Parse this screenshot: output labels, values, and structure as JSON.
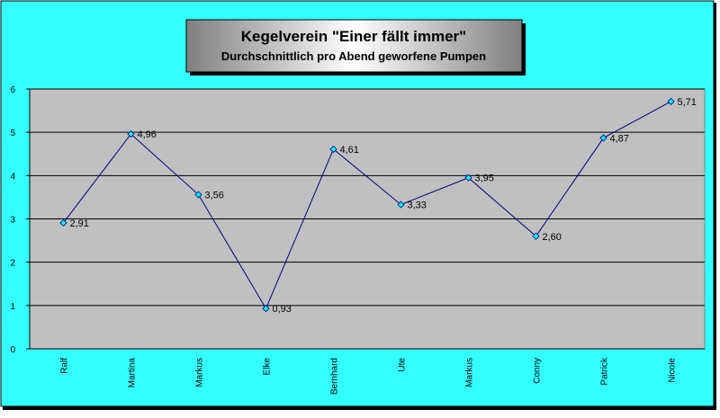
{
  "chart_data": {
    "type": "line",
    "title": "Kegelverein \"Einer fällt immer\"",
    "subtitle": "Durchschnittlich pro Abend geworfene Pumpen",
    "categories": [
      "Ralf",
      "Martina",
      "Markus",
      "Elke",
      "Bernhard",
      "Ute",
      "Markus",
      "Conny",
      "Patrick",
      "Nicole"
    ],
    "values": [
      2.91,
      4.96,
      3.56,
      0.93,
      4.61,
      3.33,
      3.95,
      2.6,
      4.87,
      5.71
    ],
    "value_labels": [
      "2,91",
      "4,96",
      "3,56",
      "0,93",
      "4,61",
      "3,33",
      "3,95",
      "2,60",
      "4,87",
      "5,71"
    ],
    "color": "#000080",
    "marker_color": "#00ffff",
    "ylim": [
      0,
      6
    ],
    "yticks": [
      0,
      1,
      2,
      3,
      4,
      5,
      6
    ],
    "grid": true
  }
}
